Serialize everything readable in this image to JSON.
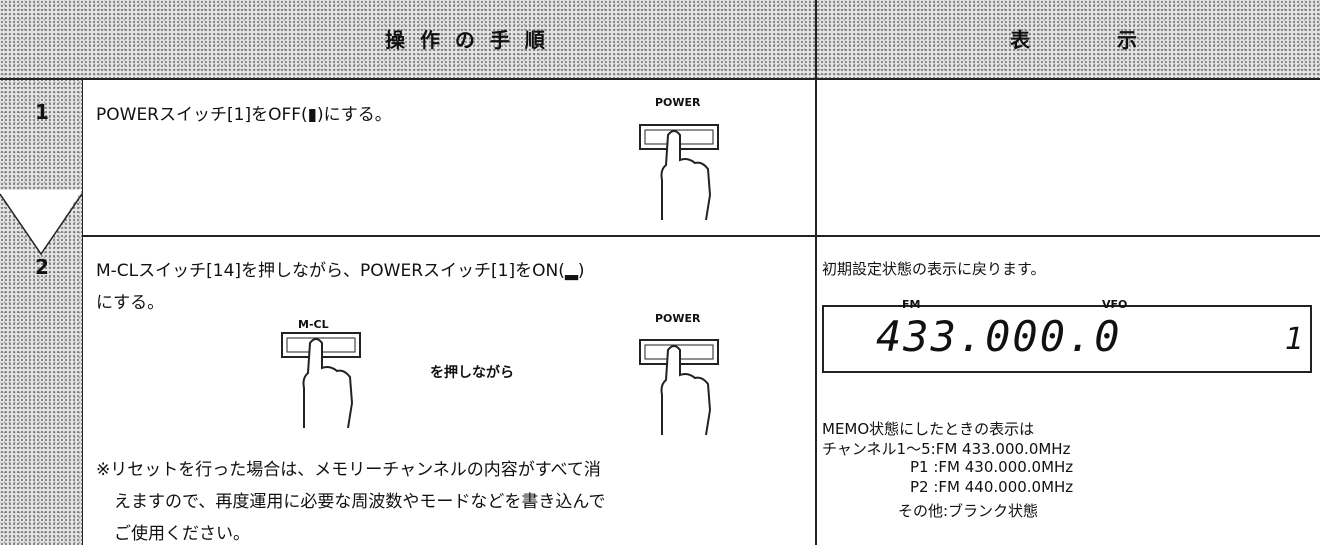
{
  "header": {
    "procedure": "操 作 の 手 順",
    "display": "表 示"
  },
  "steps": [
    {
      "number": "1",
      "text": "POWERスイッチ[1]をOFF(▮)にする。",
      "button_label": "POWER"
    },
    {
      "number": "2",
      "text_lines": [
        "M-CLスイッチ[14]を押しながら、POWERスイッチ[1]をON(▂)",
        "にする。"
      ],
      "button_labels": [
        "M-CL",
        "POWER"
      ],
      "while_pressing": "を押しながら",
      "note_lines": [
        "※リセットを行った場合は、メモリーチャンネルの内容がすべて消",
        "えますので、再度運用に必要な周波数やモードなどを書き込んで",
        "ご使用ください。"
      ],
      "display": {
        "intro": "初期設定状態の表示に戻ります。",
        "lcd": {
          "mode": "FM",
          "vfo": "VFO",
          "frequency": "433.000.0",
          "channel": "1"
        },
        "memo_lines": [
          "MEMO状態にしたときの表示は",
          "チャンネル1〜5:FM 433.000.0MHz",
          "P1 :FM 430.000.0MHz",
          "P2 :FM 440.000.0MHz",
          "その他:ブランク状態"
        ]
      }
    }
  ]
}
